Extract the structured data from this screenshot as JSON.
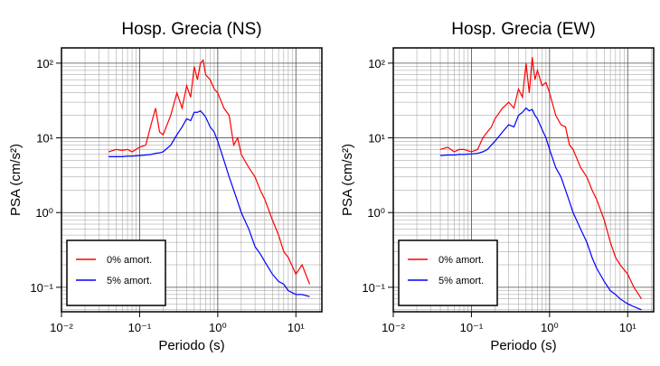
{
  "chart_data": [
    {
      "type": "line",
      "title": "Hosp. Grecia (NS)",
      "x_label": "Periodo (s)",
      "y_label": "PSA (cm/s²)",
      "log_x": true,
      "log_y": true,
      "grid": true,
      "legend": "lower left",
      "xlim": [
        0.01,
        21.5
      ],
      "ylim": [
        0.047,
        160
      ],
      "xticks": [
        {
          "value": 0.01,
          "label": "10⁻²"
        },
        {
          "value": 0.1,
          "label": "10⁻¹"
        },
        {
          "value": 1,
          "label": "10⁰"
        },
        {
          "value": 10,
          "label": "10¹"
        }
      ],
      "yticks": [
        {
          "value": 0.1,
          "label": "10⁻¹"
        },
        {
          "value": 1,
          "label": "10⁰"
        },
        {
          "value": 10,
          "label": "10¹"
        },
        {
          "value": 100,
          "label": "10²"
        }
      ],
      "x": [
        0.04,
        0.05,
        0.06,
        0.07,
        0.08,
        0.1,
        0.12,
        0.14,
        0.16,
        0.18,
        0.2,
        0.25,
        0.3,
        0.35,
        0.4,
        0.45,
        0.5,
        0.55,
        0.6,
        0.65,
        0.7,
        0.8,
        0.9,
        1.0,
        1.2,
        1.4,
        1.6,
        1.8,
        2,
        2.5,
        3,
        3.5,
        4,
        5,
        6,
        7,
        8,
        10,
        12,
        15
      ],
      "series": [
        {
          "name": "0% amort.",
          "color": "#ff0000",
          "values": [
            6.5,
            7,
            6.8,
            7,
            6.5,
            7.5,
            8,
            15,
            25,
            12,
            11,
            20,
            40,
            25,
            50,
            35,
            90,
            60,
            100,
            110,
            70,
            60,
            45,
            40,
            25,
            20,
            8,
            10,
            6,
            4,
            3,
            2,
            1.5,
            0.8,
            0.5,
            0.3,
            0.25,
            0.15,
            0.2,
            0.11
          ]
        },
        {
          "name": "5% amort.",
          "color": "#0000ff",
          "values": [
            5.6,
            5.6,
            5.6,
            5.7,
            5.7,
            5.8,
            5.9,
            6,
            6.2,
            6.3,
            6.5,
            8,
            11,
            14,
            18,
            17,
            22,
            22,
            23,
            21,
            19,
            14,
            12,
            9,
            5,
            3,
            2,
            1.4,
            1.0,
            0.6,
            0.35,
            0.28,
            0.22,
            0.15,
            0.12,
            0.11,
            0.09,
            0.08,
            0.08,
            0.075
          ]
        }
      ]
    },
    {
      "type": "line",
      "title": "Hosp. Grecia (EW)",
      "x_label": "Periodo (s)",
      "y_label": "PSA (cm/s²)",
      "log_x": true,
      "log_y": true,
      "grid": true,
      "legend": "lower left",
      "xlim": [
        0.01,
        21.5
      ],
      "ylim": [
        0.047,
        160
      ],
      "xticks": [
        {
          "value": 0.01,
          "label": "10⁻²"
        },
        {
          "value": 0.1,
          "label": "10⁻¹"
        },
        {
          "value": 1,
          "label": "10⁰"
        },
        {
          "value": 10,
          "label": "10¹"
        }
      ],
      "yticks": [
        {
          "value": 0.1,
          "label": "10⁻¹"
        },
        {
          "value": 1,
          "label": "10⁰"
        },
        {
          "value": 10,
          "label": "10¹"
        },
        {
          "value": 100,
          "label": "10²"
        }
      ],
      "x": [
        0.04,
        0.05,
        0.06,
        0.07,
        0.08,
        0.1,
        0.12,
        0.14,
        0.16,
        0.18,
        0.2,
        0.25,
        0.3,
        0.35,
        0.4,
        0.45,
        0.5,
        0.55,
        0.6,
        0.65,
        0.7,
        0.8,
        0.9,
        1.0,
        1.2,
        1.4,
        1.6,
        1.8,
        2,
        2.5,
        3,
        3.5,
        4,
        5,
        6,
        7,
        8,
        10,
        12,
        15
      ],
      "series": [
        {
          "name": "0% amort.",
          "color": "#ff0000",
          "values": [
            7,
            7.5,
            6.5,
            7,
            7,
            6.5,
            7,
            10,
            12,
            14,
            18,
            25,
            30,
            25,
            45,
            35,
            100,
            40,
            120,
            60,
            80,
            50,
            55,
            40,
            20,
            15,
            14,
            8,
            7,
            4,
            3,
            2,
            1.5,
            0.8,
            0.4,
            0.25,
            0.2,
            0.15,
            0.1,
            0.07
          ]
        },
        {
          "name": "5% amort.",
          "color": "#0000ff",
          "values": [
            5.8,
            5.9,
            5.9,
            6,
            6,
            6.1,
            6.2,
            6.5,
            7,
            8,
            9,
            12,
            15,
            14,
            20,
            22,
            25,
            23,
            24,
            20,
            18,
            13,
            10,
            7,
            4,
            3,
            2,
            1.4,
            1.0,
            0.6,
            0.4,
            0.25,
            0.18,
            0.12,
            0.09,
            0.08,
            0.07,
            0.06,
            0.055,
            0.05
          ]
        }
      ]
    }
  ]
}
